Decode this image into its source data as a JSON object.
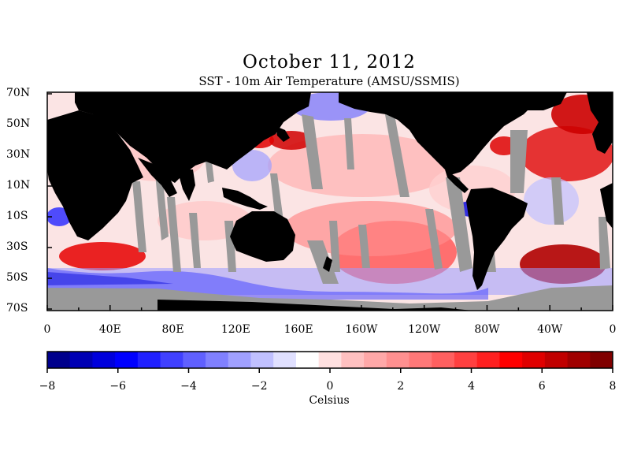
{
  "header": {
    "title": "October 11, 2012",
    "subtitle": "SST - 10m Air Temperature (AMSU/SSMIS)"
  },
  "map": {
    "latitude_labels": [
      "70N",
      "50N",
      "30N",
      "10N",
      "10S",
      "30S",
      "50S",
      "70S"
    ],
    "longitude_labels": [
      "0",
      "40E",
      "80E",
      "120E",
      "160E",
      "160W",
      "120W",
      "80W",
      "40W",
      "0"
    ],
    "colors": {
      "land": "#000000",
      "missing_data": "#999999",
      "neutral": "#ffffff"
    }
  },
  "colorbar": {
    "unit": "Celsius",
    "min": -8,
    "max": 8,
    "tick_labels": [
      "−8",
      "−6",
      "−4",
      "−2",
      "0",
      "2",
      "4",
      "6",
      "8"
    ],
    "colors": [
      "#00008c",
      "#0000b4",
      "#0000dc",
      "#0000ff",
      "#2020ff",
      "#4040ff",
      "#6060ff",
      "#8080ff",
      "#a0a0ff",
      "#c0c0ff",
      "#e0e0ff",
      "#ffffff",
      "#ffe0e0",
      "#ffc0c0",
      "#ffa8a8",
      "#ff9090",
      "#ff7878",
      "#ff6060",
      "#ff4040",
      "#ff2020",
      "#ff0000",
      "#e00000",
      "#c00000",
      "#a00000",
      "#800000"
    ]
  }
}
